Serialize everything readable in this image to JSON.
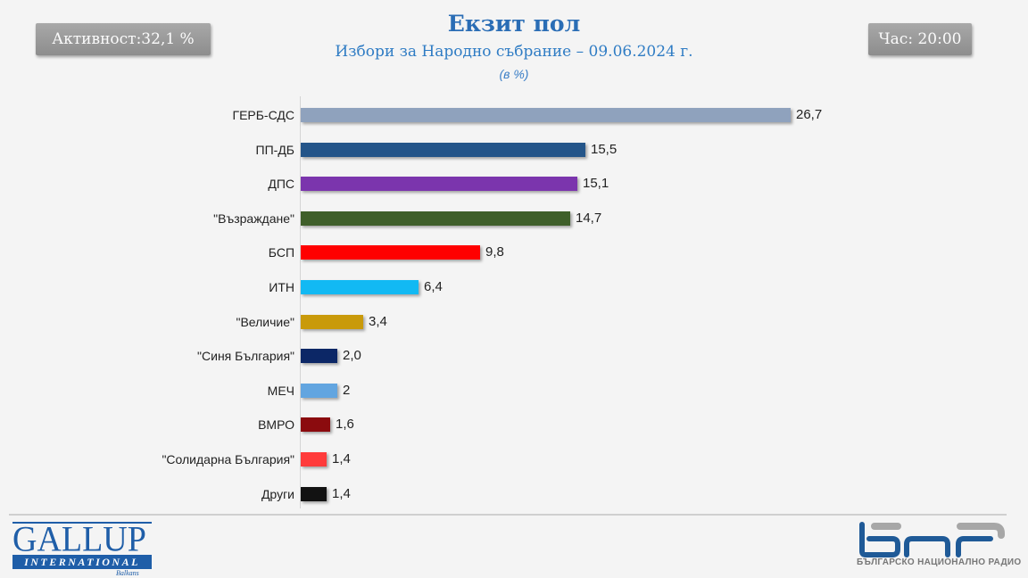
{
  "header": {
    "turnout_label": "Активност:32,1 %",
    "time_label": "Час: 20:00",
    "title": "Екзит пол",
    "subtitle": "Избори за Народно събрание – 09.06.2024  г.",
    "unit": "(в %)"
  },
  "rows": [
    {
      "label": "ГЕРБ-СДС",
      "value_text": "26,7",
      "color": "#8fa2bd"
    },
    {
      "label": "ПП-ДБ",
      "value_text": "15,5",
      "color": "#245589"
    },
    {
      "label": "ДПС",
      "value_text": "15,1",
      "color": "#7b35ad"
    },
    {
      "label": "\"Възраждане\"",
      "value_text": "14,7",
      "color": "#3f5f2a"
    },
    {
      "label": "БСП",
      "value_text": "9,8",
      "color": "#ff0000"
    },
    {
      "label": "ИТН",
      "value_text": "6,4",
      "color": "#12b9f3"
    },
    {
      "label": "\"Величие\"",
      "value_text": "3,4",
      "color": "#c99a0a"
    },
    {
      "label": "\"Синя България\"",
      "value_text": "2,0",
      "color": "#0c2766"
    },
    {
      "label": "МЕЧ",
      "value_text": "2",
      "color": "#62a5e0"
    },
    {
      "label": "ВМРО",
      "value_text": "1,6",
      "color": "#8b0b0e"
    },
    {
      "label": "\"Солидарна България\"",
      "value_text": "1,4",
      "color": "#ff3b3b"
    },
    {
      "label": "Други",
      "value_text": "1,4",
      "color": "#121212"
    }
  ],
  "footer": {
    "gallup_main": "GALLUP",
    "gallup_band": "INTERNATIONAL",
    "gallup_sub": "Balkans",
    "bnr_caption": "БЪЛГАРСКО НАЦИОНАЛНО РАДИО"
  },
  "chart_data": {
    "type": "bar",
    "orientation": "horizontal",
    "title": "Екзит пол",
    "subtitle": "Избори за Народно събрание – 09.06.2024 г.",
    "unit": "(в %)",
    "categories": [
      "ГЕРБ-СДС",
      "ПП-ДБ",
      "ДПС",
      "\"Възраждане\"",
      "БСП",
      "ИТН",
      "\"Величие\"",
      "\"Синя България\"",
      "МЕЧ",
      "ВМРО",
      "\"Солидарна България\"",
      "Други"
    ],
    "values": [
      26.7,
      15.5,
      15.1,
      14.7,
      9.8,
      6.4,
      3.4,
      2.0,
      2.0,
      1.6,
      1.4,
      1.4
    ],
    "colors": [
      "#8fa2bd",
      "#245589",
      "#7b35ad",
      "#3f5f2a",
      "#ff0000",
      "#12b9f3",
      "#c99a0a",
      "#0c2766",
      "#62a5e0",
      "#8b0b0e",
      "#ff3b3b",
      "#121212"
    ],
    "xlabel": "",
    "ylabel": "",
    "grid": false,
    "legend": null,
    "data_labels": true,
    "annotations": [
      "Активност:32,1 %",
      "Час: 20:00"
    ]
  }
}
